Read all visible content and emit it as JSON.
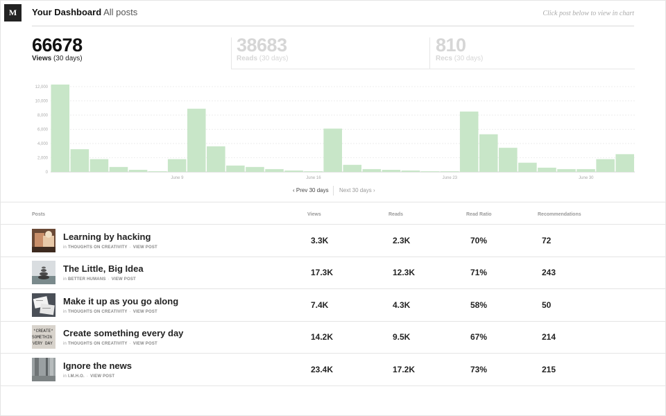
{
  "header": {
    "logo": "M",
    "title": "Your Dashboard",
    "subtitle": "All posts",
    "hint": "Click post below to view in chart"
  },
  "stats": [
    {
      "value": "66678",
      "label": "Views",
      "period": "(30 days)"
    },
    {
      "value": "38683",
      "label": "Reads",
      "period": "(30 days)"
    },
    {
      "value": "810",
      "label": "Recs",
      "period": "(30 days)"
    }
  ],
  "pager": {
    "prev": "Prev 30 days",
    "next": "Next 30 days"
  },
  "table": {
    "headers": [
      "Posts",
      "Views",
      "Reads",
      "Read Ratio",
      "Recommendations"
    ],
    "rows": [
      {
        "title": "Learning by hacking",
        "in": "in",
        "publication": "THOUGHTS ON CREATIVITY",
        "link": "VIEW POST",
        "views": "3.3K",
        "reads": "2.3K",
        "ratio": "70%",
        "recs": "72"
      },
      {
        "title": "The Little, Big Idea",
        "in": "in",
        "publication": "BETTER HUMANS",
        "link": "VIEW POST",
        "views": "17.3K",
        "reads": "12.3K",
        "ratio": "71%",
        "recs": "243"
      },
      {
        "title": "Make it up as you go along",
        "in": "in",
        "publication": "THOUGHTS ON CREATIVITY",
        "link": "VIEW POST",
        "views": "7.4K",
        "reads": "4.3K",
        "ratio": "58%",
        "recs": "50"
      },
      {
        "title": "Create something every day",
        "in": "in",
        "publication": "THOUGHTS ON CREATIVITY",
        "link": "VIEW POST",
        "views": "14.2K",
        "reads": "9.5K",
        "ratio": "67%",
        "recs": "214"
      },
      {
        "title": "Ignore the news",
        "in": "in",
        "publication": "I.M.H.O.",
        "link": "VIEW POST",
        "views": "23.4K",
        "reads": "17.2K",
        "ratio": "73%",
        "recs": "215"
      }
    ]
  },
  "chart_data": {
    "type": "bar",
    "yticks": [
      "0",
      "2,000",
      "4,000",
      "6,000",
      "8,000",
      "10,000",
      "12,000"
    ],
    "xlabels": [
      {
        "index": 6.5,
        "label": "June 9"
      },
      {
        "index": 13.5,
        "label": "June 16"
      },
      {
        "index": 20.5,
        "label": "June 23"
      },
      {
        "index": 27.5,
        "label": "June 30"
      }
    ],
    "ylim": [
      0,
      12000
    ],
    "values": [
      12300,
      3200,
      1800,
      700,
      300,
      100,
      1800,
      8900,
      3600,
      900,
      700,
      400,
      200,
      100,
      6100,
      1000,
      400,
      300,
      200,
      100,
      100,
      8500,
      5300,
      3400,
      1300,
      600,
      400,
      400,
      1800,
      2500
    ],
    "color": "#c8e6c8",
    "grid": true
  }
}
